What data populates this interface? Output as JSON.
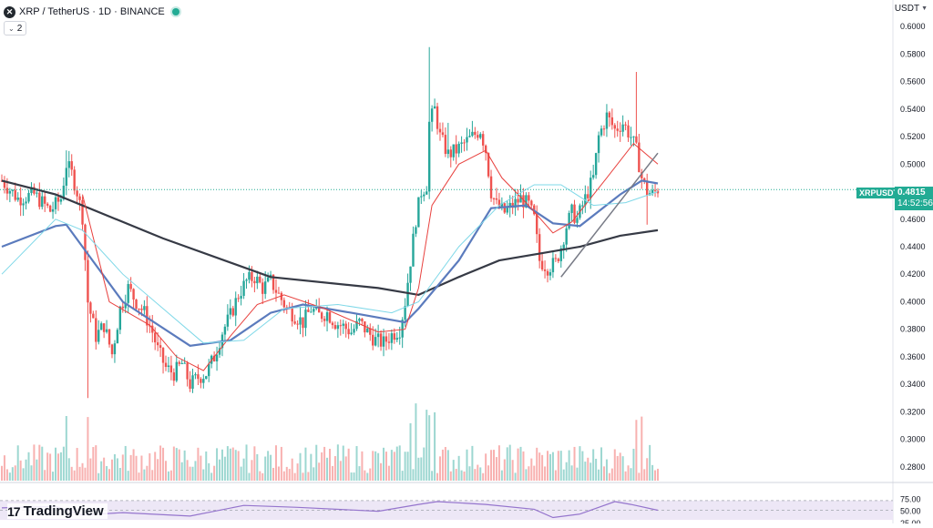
{
  "header": {
    "logo_letter": "✕",
    "title": "XRP / TetherUS · 1D · BINANCE",
    "indicator_count": "2",
    "currency": "USDT"
  },
  "price_badge": {
    "symbol": "XRPUSDT",
    "price": "0.4815",
    "countdown": "14:52:56"
  },
  "brand": {
    "name": "TradingView",
    "mark": "17"
  },
  "rsi_labels": [
    "75.00",
    "50.00",
    "25.00"
  ],
  "colors": {
    "up": "#26a69a",
    "down": "#ef5350",
    "ma_black": "#363a45",
    "ma_blue": "#5b7bbd",
    "ma_red": "#e8413e",
    "ma_cyan": "#7fd8e8",
    "rsi_line": "#9575cd",
    "rsi_fill": "#ede7f6",
    "badge": "#22ab94"
  },
  "chart_data": {
    "type": "candlestick",
    "ylim": [
      0.27,
      0.61
    ],
    "y_ticks": [
      "0.6000",
      "0.5800",
      "0.5600",
      "0.5400",
      "0.5200",
      "0.5000",
      "0.4800",
      "0.4600",
      "0.4400",
      "0.4200",
      "0.4000",
      "0.3800",
      "0.3600",
      "0.3400",
      "0.3200",
      "0.3000",
      "0.2800"
    ],
    "last_price": 0.4815,
    "close_path": [
      [
        0,
        0.488
      ],
      [
        6,
        0.475
      ],
      [
        12,
        0.478
      ],
      [
        18,
        0.466
      ],
      [
        22,
        0.475
      ],
      [
        24,
        0.5
      ],
      [
        26,
        0.493
      ],
      [
        28,
        0.48
      ],
      [
        30,
        0.462
      ],
      [
        32,
        0.4
      ],
      [
        35,
        0.375
      ],
      [
        38,
        0.383
      ],
      [
        41,
        0.362
      ],
      [
        44,
        0.395
      ],
      [
        47,
        0.41
      ],
      [
        50,
        0.4
      ],
      [
        53,
        0.392
      ],
      [
        56,
        0.378
      ],
      [
        58,
        0.365
      ],
      [
        61,
        0.352
      ],
      [
        64,
        0.348
      ],
      [
        67,
        0.355
      ],
      [
        70,
        0.34
      ],
      [
        73,
        0.345
      ],
      [
        76,
        0.348
      ],
      [
        79,
        0.36
      ],
      [
        82,
        0.378
      ],
      [
        85,
        0.39
      ],
      [
        88,
        0.405
      ],
      [
        91,
        0.415
      ],
      [
        94,
        0.418
      ],
      [
        97,
        0.41
      ],
      [
        100,
        0.415
      ],
      [
        103,
        0.405
      ],
      [
        106,
        0.395
      ],
      [
        109,
        0.39
      ],
      [
        112,
        0.385
      ],
      [
        115,
        0.395
      ],
      [
        118,
        0.39
      ],
      [
        121,
        0.392
      ],
      [
        124,
        0.385
      ],
      [
        127,
        0.382
      ],
      [
        130,
        0.378
      ],
      [
        133,
        0.385
      ],
      [
        136,
        0.378
      ],
      [
        139,
        0.372
      ],
      [
        142,
        0.37
      ],
      [
        145,
        0.376
      ],
      [
        148,
        0.38
      ],
      [
        150,
        0.4
      ],
      [
        152,
        0.43
      ],
      [
        154,
        0.46
      ],
      [
        156,
        0.48
      ],
      [
        158,
        0.485
      ],
      [
        159,
        0.53
      ],
      [
        161,
        0.54
      ],
      [
        163,
        0.52
      ],
      [
        166,
        0.507
      ],
      [
        169,
        0.51
      ],
      [
        172,
        0.515
      ],
      [
        175,
        0.52
      ],
      [
        178,
        0.525
      ],
      [
        180,
        0.51
      ],
      [
        182,
        0.48
      ],
      [
        184,
        0.47
      ],
      [
        187,
        0.465
      ],
      [
        190,
        0.47
      ],
      [
        193,
        0.475
      ],
      [
        196,
        0.47
      ],
      [
        198,
        0.46
      ],
      [
        200,
        0.43
      ],
      [
        203,
        0.425
      ],
      [
        206,
        0.428
      ],
      [
        208,
        0.44
      ],
      [
        210,
        0.455
      ],
      [
        212,
        0.465
      ],
      [
        214,
        0.46
      ],
      [
        216,
        0.47
      ],
      [
        218,
        0.48
      ],
      [
        220,
        0.49
      ],
      [
        222,
        0.52
      ],
      [
        225,
        0.535
      ],
      [
        228,
        0.525
      ],
      [
        231,
        0.53
      ],
      [
        234,
        0.52
      ],
      [
        236,
        0.51
      ],
      [
        238,
        0.49
      ],
      [
        240,
        0.48
      ],
      [
        242,
        0.478
      ],
      [
        244,
        0.482
      ]
    ],
    "moving_averages": [
      {
        "color": "ma_black",
        "points": [
          [
            0,
            0.488
          ],
          [
            20,
            0.478
          ],
          [
            60,
            0.446
          ],
          [
            100,
            0.418
          ],
          [
            140,
            0.41
          ],
          [
            155,
            0.405
          ],
          [
            170,
            0.418
          ],
          [
            185,
            0.43
          ],
          [
            200,
            0.435
          ],
          [
            215,
            0.44
          ],
          [
            230,
            0.448
          ],
          [
            244,
            0.452
          ]
        ]
      },
      {
        "color": "ma_blue",
        "points": [
          [
            0,
            0.44
          ],
          [
            20,
            0.455
          ],
          [
            24,
            0.456
          ],
          [
            30,
            0.44
          ],
          [
            45,
            0.4
          ],
          [
            70,
            0.368
          ],
          [
            85,
            0.372
          ],
          [
            100,
            0.392
          ],
          [
            112,
            0.398
          ],
          [
            130,
            0.392
          ],
          [
            150,
            0.385
          ],
          [
            155,
            0.395
          ],
          [
            170,
            0.43
          ],
          [
            182,
            0.468
          ],
          [
            195,
            0.47
          ],
          [
            205,
            0.457
          ],
          [
            215,
            0.455
          ],
          [
            230,
            0.478
          ],
          [
            238,
            0.488
          ],
          [
            244,
            0.486
          ]
        ]
      },
      {
        "color": "ma_red",
        "points": [
          [
            30,
            0.478
          ],
          [
            40,
            0.4
          ],
          [
            55,
            0.383
          ],
          [
            65,
            0.36
          ],
          [
            75,
            0.35
          ],
          [
            85,
            0.375
          ],
          [
            95,
            0.398
          ],
          [
            105,
            0.405
          ],
          [
            120,
            0.395
          ],
          [
            140,
            0.378
          ],
          [
            150,
            0.38
          ],
          [
            155,
            0.41
          ],
          [
            160,
            0.47
          ],
          [
            170,
            0.5
          ],
          [
            180,
            0.51
          ],
          [
            186,
            0.49
          ],
          [
            195,
            0.472
          ],
          [
            205,
            0.45
          ],
          [
            212,
            0.458
          ],
          [
            225,
            0.49
          ],
          [
            235,
            0.515
          ],
          [
            244,
            0.5
          ]
        ]
      },
      {
        "color": "ma_cyan",
        "points": [
          [
            0,
            0.42
          ],
          [
            20,
            0.46
          ],
          [
            30,
            0.452
          ],
          [
            45,
            0.42
          ],
          [
            60,
            0.395
          ],
          [
            75,
            0.37
          ],
          [
            90,
            0.372
          ],
          [
            105,
            0.395
          ],
          [
            125,
            0.398
          ],
          [
            145,
            0.392
          ],
          [
            155,
            0.4
          ],
          [
            170,
            0.44
          ],
          [
            185,
            0.47
          ],
          [
            198,
            0.485
          ],
          [
            208,
            0.485
          ],
          [
            220,
            0.47
          ],
          [
            232,
            0.472
          ],
          [
            244,
            0.48
          ]
        ]
      }
    ],
    "trend_line": [
      [
        208,
        0.418
      ],
      [
        244,
        0.508
      ]
    ],
    "rsi_path": [
      [
        0,
        55
      ],
      [
        20,
        58
      ],
      [
        30,
        40
      ],
      [
        45,
        45
      ],
      [
        70,
        38
      ],
      [
        90,
        60
      ],
      [
        110,
        56
      ],
      [
        140,
        48
      ],
      [
        155,
        62
      ],
      [
        162,
        68
      ],
      [
        180,
        62
      ],
      [
        198,
        52
      ],
      [
        205,
        35
      ],
      [
        215,
        42
      ],
      [
        228,
        68
      ],
      [
        234,
        62
      ],
      [
        244,
        50
      ]
    ]
  }
}
